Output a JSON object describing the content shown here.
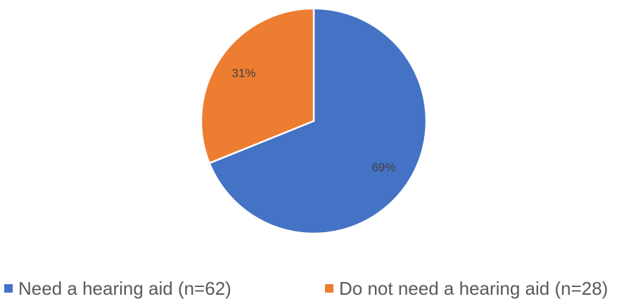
{
  "chart_data": {
    "type": "pie",
    "title": "",
    "slices": [
      {
        "label": "Need a hearing aid (n=62)",
        "value": 62,
        "percent_label": "69%",
        "color": "#4472C4"
      },
      {
        "label": "Do not need a hearing aid (n=28)",
        "value": 28,
        "percent_label": "31%",
        "color": "#ED7D31"
      }
    ],
    "legend_position": "bottom",
    "start_angle": "12 o'clock",
    "direction": "clockwise"
  }
}
